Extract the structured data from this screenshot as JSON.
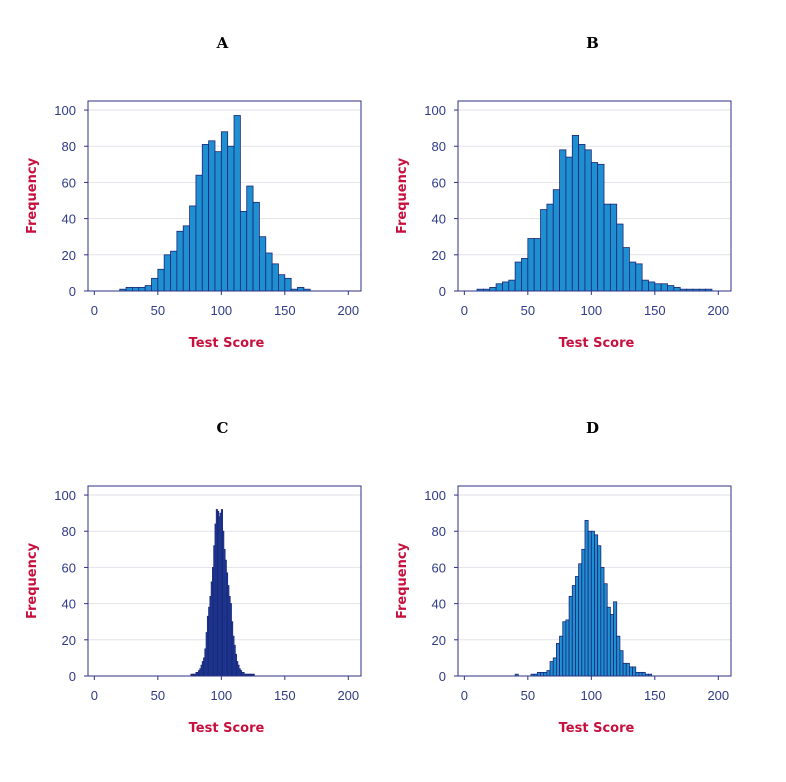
{
  "colors": {
    "bar_fill_light": "#1e90d2",
    "bar_fill_dark": "#1a4fb3",
    "bar_edge": "#1d2575",
    "frame": "#2e3286",
    "axis_label": "#c8103e",
    "tick_label": "#2f3b86"
  },
  "chart_data": [
    {
      "type": "bar",
      "title": "A",
      "xlabel": "Test Score",
      "ylabel": "Frequency",
      "xlim": [
        -5,
        210
      ],
      "ylim": [
        0,
        105
      ],
      "xticks": [
        "0",
        "50",
        "100",
        "150",
        "200"
      ],
      "yticks": [
        "0",
        "20",
        "40",
        "60",
        "80",
        "100"
      ],
      "bin_width": 5,
      "bin_starts": [
        20,
        25,
        30,
        35,
        40,
        45,
        50,
        55,
        60,
        65,
        70,
        75,
        80,
        85,
        90,
        95,
        100,
        105,
        110,
        115,
        120,
        125,
        130,
        135,
        140,
        145,
        150,
        155,
        160,
        165
      ],
      "values": [
        1,
        2,
        2,
        2,
        3,
        7,
        12,
        20,
        22,
        33,
        36,
        47,
        64,
        81,
        83,
        77,
        88,
        80,
        97,
        44,
        58,
        49,
        30,
        21,
        15,
        9,
        7,
        1,
        2,
        1
      ],
      "grid": true
    },
    {
      "type": "bar",
      "title": "B",
      "xlabel": "Test Score",
      "ylabel": "Frequency",
      "xlim": [
        -5,
        210
      ],
      "ylim": [
        0,
        105
      ],
      "xticks": [
        "0",
        "50",
        "100",
        "150",
        "200"
      ],
      "yticks": [
        "0",
        "20",
        "40",
        "60",
        "80",
        "100"
      ],
      "bin_width": 5,
      "bin_starts": [
        10,
        15,
        20,
        25,
        30,
        35,
        40,
        45,
        50,
        55,
        60,
        65,
        70,
        75,
        80,
        85,
        90,
        95,
        100,
        105,
        110,
        115,
        120,
        125,
        130,
        135,
        140,
        145,
        150,
        155,
        160,
        165,
        170,
        175,
        180,
        185,
        190
      ],
      "values": [
        1,
        1,
        2,
        4,
        5,
        6,
        16,
        18,
        29,
        29,
        45,
        48,
        56,
        78,
        74,
        86,
        81,
        78,
        71,
        70,
        48,
        48,
        37,
        24,
        16,
        15,
        6,
        5,
        4,
        4,
        3,
        2,
        1,
        1,
        1,
        1,
        1
      ],
      "grid": true
    },
    {
      "type": "bar",
      "title": "C",
      "xlabel": "Test Score",
      "ylabel": "Frequency",
      "xlim": [
        -5,
        210
      ],
      "ylim": [
        0,
        105
      ],
      "xticks": [
        "0",
        "50",
        "100",
        "150",
        "200"
      ],
      "yticks": [
        "0",
        "20",
        "40",
        "60",
        "80",
        "100"
      ],
      "bin_width": 1,
      "bin_starts": [
        76,
        77,
        78,
        79,
        80,
        81,
        82,
        83,
        84,
        85,
        86,
        87,
        88,
        89,
        90,
        91,
        92,
        93,
        94,
        95,
        96,
        97,
        98,
        99,
        100,
        101,
        102,
        103,
        104,
        105,
        106,
        107,
        108,
        109,
        110,
        111,
        112,
        113,
        114,
        115,
        116,
        117,
        118,
        119,
        120,
        121,
        122,
        123,
        124,
        125
      ],
      "values": [
        1,
        1,
        1,
        1,
        2,
        2,
        3,
        4,
        6,
        8,
        10,
        15,
        24,
        33,
        38,
        44,
        52,
        60,
        72,
        84,
        92,
        91,
        88,
        90,
        92,
        80,
        70,
        64,
        57,
        50,
        44,
        40,
        30,
        22,
        17,
        12,
        8,
        6,
        4,
        3,
        2,
        2,
        1,
        1,
        1,
        1,
        1,
        1,
        1,
        1
      ],
      "grid": true
    },
    {
      "type": "bar",
      "title": "D",
      "xlabel": "Test Score",
      "ylabel": "Frequency",
      "xlim": [
        -5,
        210
      ],
      "ylim": [
        0,
        105
      ],
      "xticks": [
        "0",
        "50",
        "100",
        "150",
        "200"
      ],
      "yticks": [
        "0",
        "20",
        "40",
        "60",
        "80",
        "100"
      ],
      "bin_width": 2.5,
      "bin_starts": [
        40,
        52.5,
        55,
        57.5,
        60,
        62.5,
        65,
        67.5,
        70,
        72.5,
        75,
        77.5,
        80,
        82.5,
        85,
        87.5,
        90,
        92.5,
        95,
        97.5,
        100,
        102.5,
        105,
        107.5,
        110,
        112.5,
        115,
        117.5,
        120,
        122.5,
        125,
        127.5,
        130,
        132.5,
        135,
        137.5,
        140,
        142.5,
        145
      ],
      "values": [
        1,
        1,
        1,
        2,
        2,
        2,
        3,
        8,
        10,
        18,
        22,
        30,
        31,
        44,
        50,
        55,
        62,
        70,
        86,
        80,
        80,
        78,
        72,
        60,
        51,
        38,
        34,
        41,
        22,
        14,
        7,
        7,
        5,
        5,
        2,
        2,
        2,
        1,
        1
      ],
      "grid": true
    }
  ]
}
